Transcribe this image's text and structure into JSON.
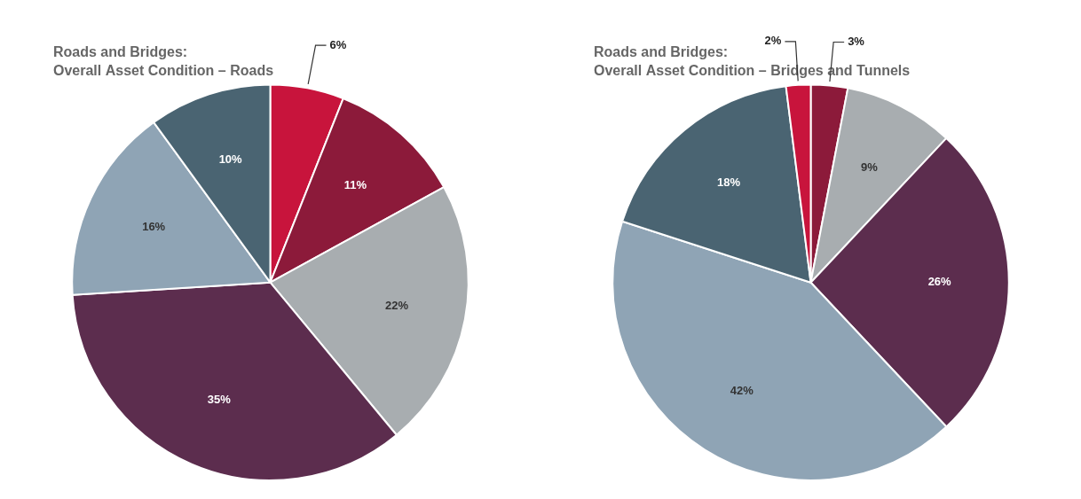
{
  "chart_data": [
    {
      "type": "pie",
      "title": "Roads and Bridges:",
      "subtitle": "Overall Asset Condition – Roads",
      "values": [
        6,
        11,
        22,
        35,
        16,
        10
      ],
      "value_labels": [
        "6%",
        "11%",
        "22%",
        "35%",
        "16%",
        "10%"
      ],
      "colors": [
        "#c8143c",
        "#8c1a3a",
        "#a8adb0",
        "#5c2d4e",
        "#8fa4b5",
        "#4a6472"
      ],
      "data_labels": true
    },
    {
      "type": "pie",
      "title": "Roads and Bridges:",
      "subtitle": "Overall Asset Condition – Bridges and Tunnels",
      "values": [
        3,
        9,
        26,
        42,
        18,
        2
      ],
      "value_labels": [
        "3%",
        "9%",
        "26%",
        "42%",
        "18%",
        "2%"
      ],
      "colors": [
        "#8c1a3a",
        "#a8adb0",
        "#5c2d4e",
        "#8fa4b5",
        "#4a6472",
        "#c8143c"
      ],
      "data_labels": true
    }
  ]
}
